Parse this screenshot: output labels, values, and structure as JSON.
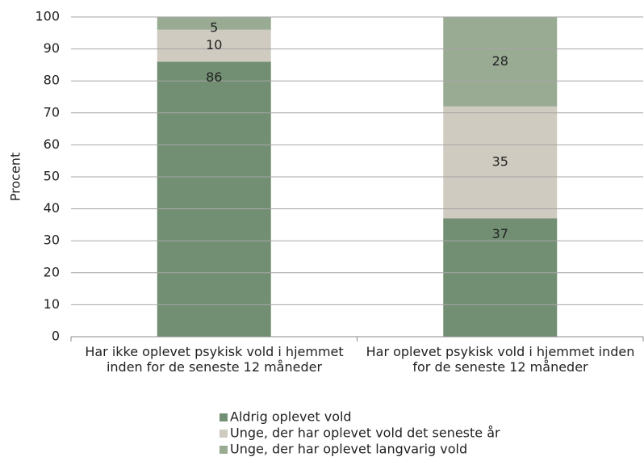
{
  "chart_data": {
    "type": "stacked_bar",
    "categories": [
      "Har ikke oplevet psykisk vold i hjemmet inden for de seneste 12 måneder",
      "Har oplevet psykisk vold i hjemmet inden for de seneste 12 måneder"
    ],
    "series": [
      {
        "name": "Aldrig oplevet vold",
        "color": "#738f73",
        "values": [
          86,
          37
        ]
      },
      {
        "name": "Unge, der har oplevet vold det seneste år",
        "color": "#cfcbc0",
        "values": [
          10,
          35
        ]
      },
      {
        "name": "Unge, der har oplevet langvarig vold",
        "color": "#9aab94",
        "values": [
          5,
          28
        ]
      }
    ],
    "ylabel": "Procent",
    "ylim": [
      0,
      100
    ],
    "yticks": [
      0,
      10,
      20,
      30,
      40,
      50,
      60,
      70,
      80,
      90,
      100
    ],
    "grid": true,
    "legend": "bottom"
  }
}
